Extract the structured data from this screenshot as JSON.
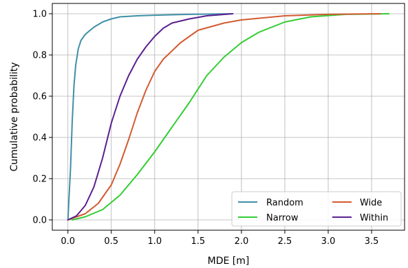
{
  "chart_data": {
    "type": "line",
    "xlabel": "MDE [m]",
    "ylabel": "Cumulative probability",
    "xlim": [
      -0.18,
      3.88
    ],
    "ylim": [
      -0.05,
      1.05
    ],
    "xticks": [
      "0.0",
      "0.5",
      "1.0",
      "1.5",
      "2.0",
      "2.5",
      "3.0",
      "3.5"
    ],
    "yticks": [
      "0.0",
      "0.2",
      "0.4",
      "0.6",
      "0.8",
      "1.0"
    ],
    "grid": true,
    "legend": {
      "placement": "bottom-right",
      "columns": 2
    },
    "series": [
      {
        "name": "Random",
        "color": "#3e8fa6",
        "points": [
          [
            0.0,
            0.0
          ],
          [
            0.03,
            0.25
          ],
          [
            0.05,
            0.48
          ],
          [
            0.07,
            0.65
          ],
          [
            0.09,
            0.75
          ],
          [
            0.12,
            0.83
          ],
          [
            0.15,
            0.87
          ],
          [
            0.2,
            0.9
          ],
          [
            0.3,
            0.935
          ],
          [
            0.4,
            0.96
          ],
          [
            0.5,
            0.975
          ],
          [
            0.6,
            0.985
          ],
          [
            0.8,
            0.99
          ],
          [
            1.0,
            0.993
          ],
          [
            1.4,
            0.997
          ],
          [
            1.9,
            1.0
          ]
        ]
      },
      {
        "name": "Narrow",
        "color": "#33cc33",
        "points": [
          [
            0.05,
            0.0
          ],
          [
            0.2,
            0.015
          ],
          [
            0.4,
            0.05
          ],
          [
            0.6,
            0.12
          ],
          [
            0.8,
            0.22
          ],
          [
            1.0,
            0.33
          ],
          [
            1.2,
            0.45
          ],
          [
            1.4,
            0.57
          ],
          [
            1.6,
            0.7
          ],
          [
            1.8,
            0.79
          ],
          [
            2.0,
            0.86
          ],
          [
            2.2,
            0.91
          ],
          [
            2.5,
            0.96
          ],
          [
            2.8,
            0.985
          ],
          [
            3.2,
            0.997
          ],
          [
            3.7,
            1.0
          ]
        ]
      },
      {
        "name": "Wide",
        "color": "#d25a30",
        "points": [
          [
            0.0,
            0.0
          ],
          [
            0.2,
            0.03
          ],
          [
            0.35,
            0.08
          ],
          [
            0.5,
            0.17
          ],
          [
            0.6,
            0.27
          ],
          [
            0.7,
            0.39
          ],
          [
            0.8,
            0.52
          ],
          [
            0.9,
            0.63
          ],
          [
            1.0,
            0.72
          ],
          [
            1.1,
            0.78
          ],
          [
            1.3,
            0.86
          ],
          [
            1.5,
            0.92
          ],
          [
            1.8,
            0.955
          ],
          [
            2.0,
            0.97
          ],
          [
            2.5,
            0.99
          ],
          [
            3.0,
            0.997
          ],
          [
            3.6,
            1.0
          ]
        ]
      },
      {
        "name": "Within",
        "color": "#5a1f8f",
        "points": [
          [
            0.0,
            0.0
          ],
          [
            0.1,
            0.02
          ],
          [
            0.2,
            0.07
          ],
          [
            0.3,
            0.16
          ],
          [
            0.4,
            0.3
          ],
          [
            0.5,
            0.47
          ],
          [
            0.6,
            0.6
          ],
          [
            0.7,
            0.7
          ],
          [
            0.8,
            0.78
          ],
          [
            0.9,
            0.84
          ],
          [
            1.0,
            0.89
          ],
          [
            1.1,
            0.93
          ],
          [
            1.2,
            0.955
          ],
          [
            1.4,
            0.975
          ],
          [
            1.6,
            0.99
          ],
          [
            1.9,
            1.0
          ]
        ]
      }
    ]
  }
}
